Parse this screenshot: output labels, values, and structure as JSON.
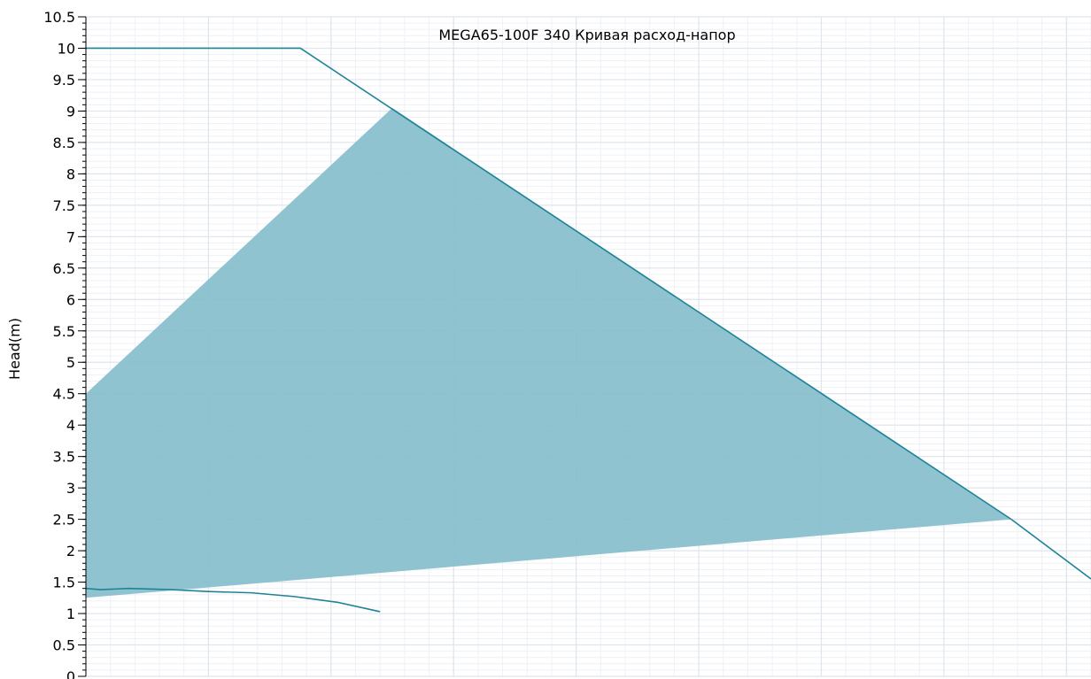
{
  "chart_data": {
    "type": "line",
    "title": "MEGA65-100F 340 Кривая расход-напор",
    "xlabel": "",
    "ylabel": "Head(m)",
    "xlim": [
      0,
      8.2
    ],
    "ylim": [
      0,
      10.5
    ],
    "y_ticks": [
      "0",
      "0.5",
      "1",
      "1.5",
      "2",
      "2.5",
      "3",
      "3.5",
      "4",
      "4.5",
      "5",
      "5.5",
      "6",
      "6.5",
      "7",
      "7.5",
      "8",
      "8.5",
      "9",
      "9.5",
      "10",
      "10.5"
    ],
    "grid": true,
    "legend": "none",
    "colors": {
      "line": "#1f8397",
      "area": "#84bccb",
      "grid": "#dfe5ee"
    },
    "series": [
      {
        "role": "max-head-curve",
        "x": [
          0,
          1.75,
          7.55,
          8.2
        ],
        "y": [
          10.0,
          10.0,
          2.5,
          1.55
        ]
      },
      {
        "role": "efficiency-curve",
        "x": [
          0,
          0.12,
          0.35,
          0.7,
          1.0,
          1.35,
          1.7,
          2.05,
          2.4
        ],
        "y": [
          1.4,
          1.38,
          1.4,
          1.38,
          1.35,
          1.33,
          1.27,
          1.18,
          1.03
        ]
      }
    ],
    "operating_region": {
      "x": [
        0,
        2.5,
        7.55,
        0
      ],
      "y": [
        4.5,
        9.05,
        2.5,
        1.25
      ]
    }
  }
}
